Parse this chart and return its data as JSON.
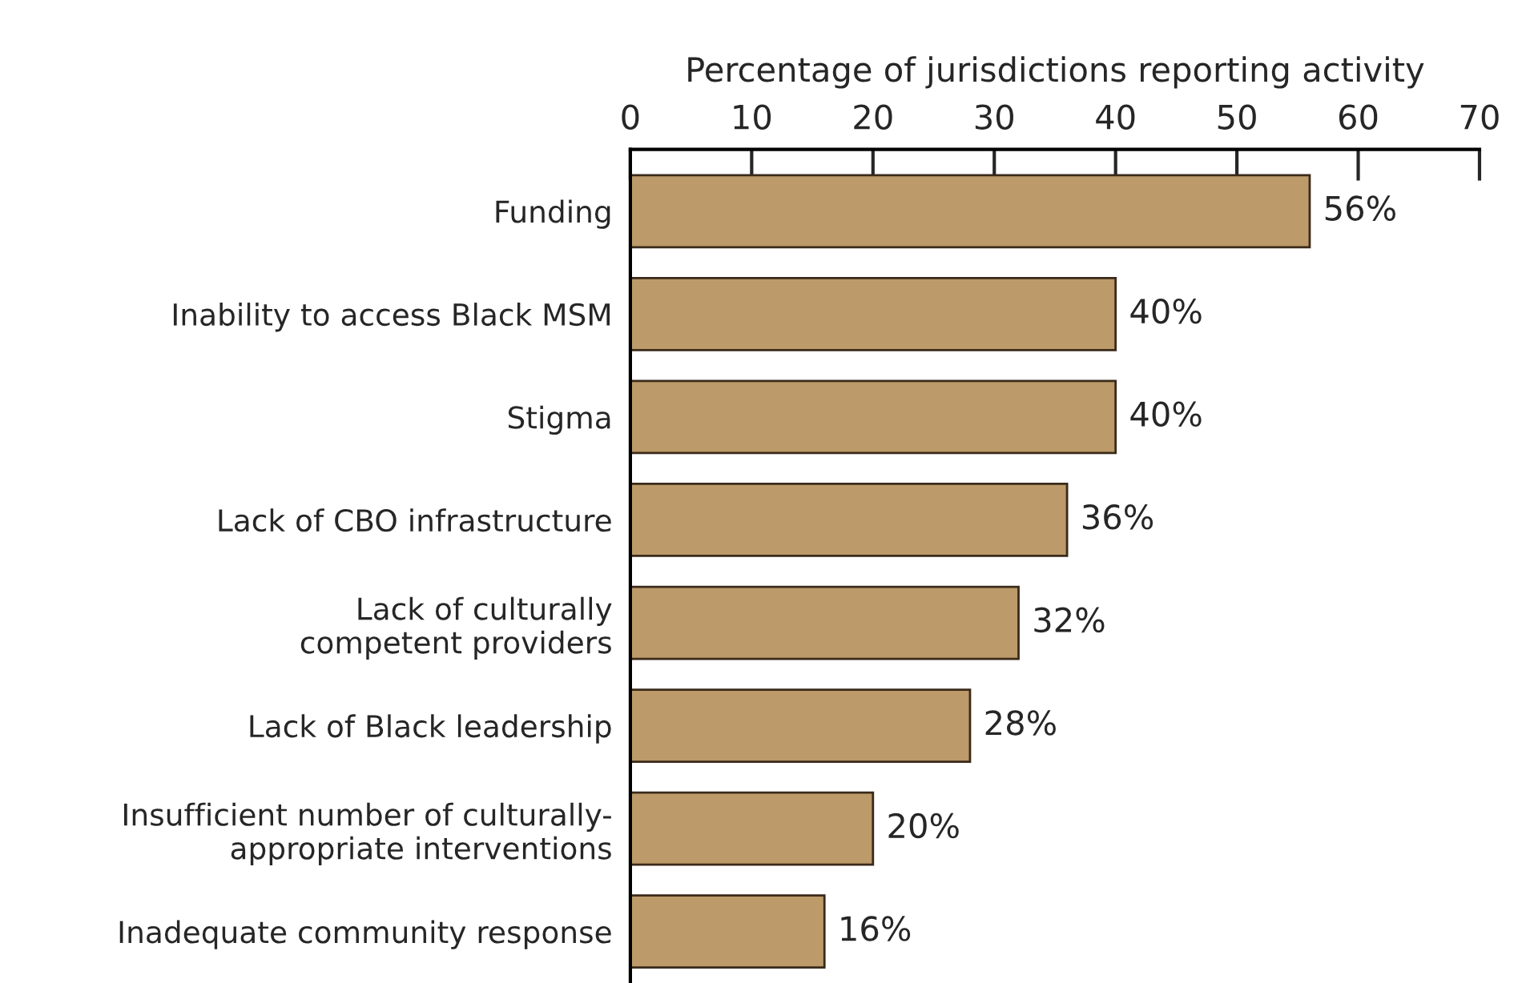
{
  "chart_data": {
    "type": "bar",
    "orientation": "horizontal",
    "xlabel": "Percentage of jurisdictions reporting activity",
    "categories": [
      "Funding",
      "Inability to access Black MSM",
      "Stigma",
      "Lack of CBO infrastructure",
      "Lack of culturally\ncompetent providers",
      "Lack of Black leadership",
      "Insufficient number of culturally-\nappropriate interventions",
      "Inadequate community response"
    ],
    "values": [
      56,
      40,
      40,
      36,
      32,
      28,
      20,
      16
    ],
    "value_labels": [
      "56%",
      "40%",
      "40%",
      "36%",
      "32%",
      "28%",
      "20%",
      "16%"
    ],
    "color": "#bc9a69",
    "xlim": [
      0,
      70
    ],
    "xticks": [
      0,
      10,
      20,
      30,
      40,
      50,
      60,
      70
    ],
    "grid": false,
    "legend": false
  }
}
